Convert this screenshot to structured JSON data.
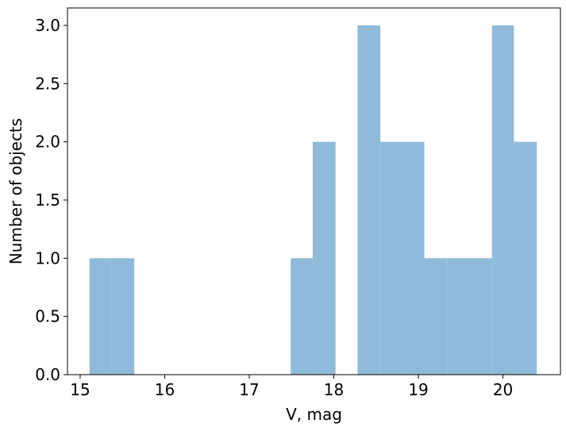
{
  "chart_data": {
    "type": "bar",
    "subtype": "histogram",
    "title": "",
    "xlabel": "V,  mag",
    "ylabel": "Number of objects",
    "xlim": [
      14.85,
      20.68
    ],
    "ylim": [
      0.0,
      3.15
    ],
    "grid": false,
    "legend": "none",
    "color": "#8fbad9",
    "x_ticks": [
      15,
      16,
      17,
      18,
      19,
      20
    ],
    "x_tick_labels": [
      "15",
      "16",
      "17",
      "18",
      "19",
      "20"
    ],
    "y_ticks": [
      0.0,
      0.5,
      1.0,
      1.5,
      2.0,
      2.5,
      3.0
    ],
    "y_tick_labels": [
      "0.0",
      "0.5",
      "1.0",
      "1.5",
      "2.0",
      "2.5",
      "3.0"
    ],
    "bins": [
      {
        "x0": 15.11,
        "x1": 15.37,
        "count": 1
      },
      {
        "x0": 15.37,
        "x1": 15.64,
        "count": 1
      },
      {
        "x0": 17.49,
        "x1": 17.75,
        "count": 1
      },
      {
        "x0": 17.75,
        "x1": 18.02,
        "count": 2
      },
      {
        "x0": 18.28,
        "x1": 18.55,
        "count": 3
      },
      {
        "x0": 18.55,
        "x1": 18.81,
        "count": 2
      },
      {
        "x0": 18.81,
        "x1": 19.07,
        "count": 2
      },
      {
        "x0": 19.07,
        "x1": 19.34,
        "count": 1
      },
      {
        "x0": 19.34,
        "x1": 19.6,
        "count": 1
      },
      {
        "x0": 19.6,
        "x1": 19.87,
        "count": 1
      },
      {
        "x0": 19.87,
        "x1": 20.13,
        "count": 3
      },
      {
        "x0": 20.13,
        "x1": 20.4,
        "count": 2
      }
    ]
  }
}
